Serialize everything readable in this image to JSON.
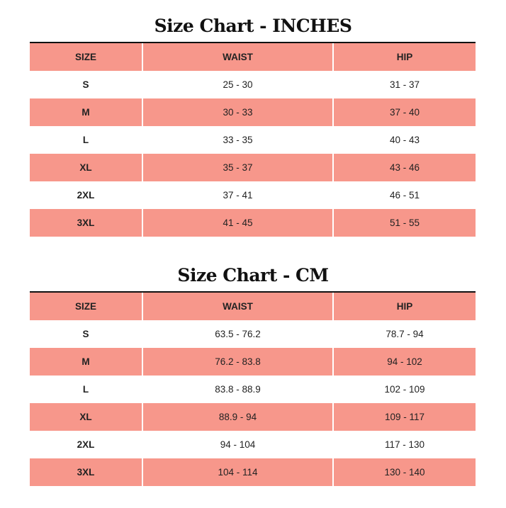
{
  "colors": {
    "row_highlight": "#f7978b",
    "title": "#111111"
  },
  "tables": [
    {
      "title": "Size Chart - INCHES",
      "headers": [
        "SIZE",
        "WAIST",
        "HIP"
      ],
      "rows": [
        [
          "S",
          "25 - 30",
          "31 - 37"
        ],
        [
          "M",
          "30 - 33",
          "37 - 40"
        ],
        [
          "L",
          "33 - 35",
          "40 - 43"
        ],
        [
          "XL",
          "35 - 37",
          "43 - 46"
        ],
        [
          "2XL",
          "37 - 41",
          "46 - 51"
        ],
        [
          "3XL",
          "41 - 45",
          "51 - 55"
        ]
      ]
    },
    {
      "title": "Size Chart - CM",
      "headers": [
        "SIZE",
        "WAIST",
        "HIP"
      ],
      "rows": [
        [
          "S",
          "63.5 - 76.2",
          "78.7 - 94"
        ],
        [
          "M",
          "76.2 - 83.8",
          "94 - 102"
        ],
        [
          "L",
          "83.8 - 88.9",
          "102 - 109"
        ],
        [
          "XL",
          "88.9 - 94",
          "109 - 117"
        ],
        [
          "2XL",
          "94 - 104",
          "117 - 130"
        ],
        [
          "3XL",
          "104 - 114",
          "130 - 140"
        ]
      ]
    }
  ]
}
